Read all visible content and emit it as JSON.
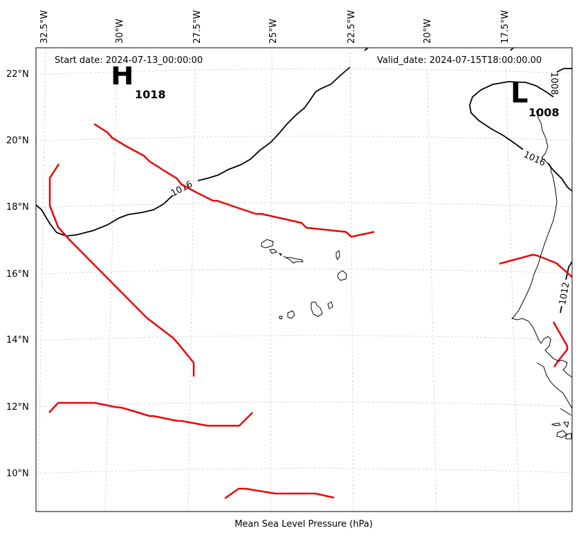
{
  "header": {
    "start_date": "Start date: 2024-07-13_00:00:00",
    "valid_date": "Valid_date: 2024-07-15T18:00:00.00"
  },
  "caption": "Mean Sea Level Pressure (hPa)",
  "axes": {
    "lon_ticks": [
      "32.5°W",
      "30°W",
      "27.5°W",
      "25°W",
      "22.5°W",
      "20°W",
      "17.5°W"
    ],
    "lat_ticks": [
      "22°N",
      "20°N",
      "18°N",
      "16°N",
      "14°N",
      "12°N",
      "10°N"
    ]
  },
  "pressure_centers": [
    {
      "type": "H",
      "value": "1018"
    },
    {
      "type": "L",
      "value": "1008"
    }
  ],
  "contour_labels": [
    "1016",
    "1016",
    "1008",
    "1012"
  ],
  "colors": {
    "isobar": "#000000",
    "trough": "#ee0000",
    "grid": "#cccccc",
    "coast": "#000000"
  }
}
